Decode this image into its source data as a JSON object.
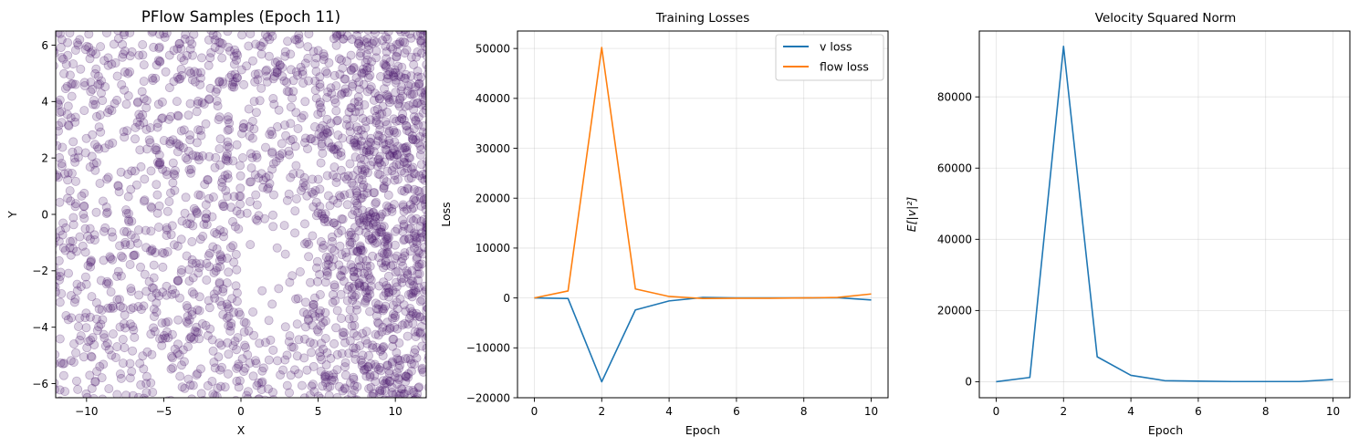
{
  "chart_data": [
    {
      "type": "scatter",
      "title": "PFlow Samples (Epoch 11)",
      "xlabel": "X",
      "ylabel": "Y",
      "xlim": [
        -12,
        12
      ],
      "ylim": [
        -6.5,
        6.5
      ],
      "xticks": [
        -10,
        -5,
        0,
        5,
        10
      ],
      "yticks": [
        -6,
        -4,
        -2,
        0,
        2,
        4,
        6
      ],
      "grid": false,
      "point_color": "#4b1a6e",
      "point_alpha": 0.2,
      "distribution": "approximately uniform over the full view, densest near the right edge (x > 7), with a sparser area near (2, -2)"
    },
    {
      "type": "line",
      "title": "Training Losses",
      "xlabel": "Epoch",
      "ylabel": "Loss",
      "x": [
        0,
        1,
        2,
        3,
        4,
        5,
        6,
        7,
        8,
        9,
        10
      ],
      "xlim": [
        -0.5,
        10.5
      ],
      "ylim": [
        -20000,
        53500
      ],
      "xticks": [
        0,
        2,
        4,
        6,
        8,
        10
      ],
      "yticks": [
        -20000,
        -10000,
        0,
        10000,
        20000,
        30000,
        40000,
        50000
      ],
      "grid": true,
      "legend": "top-right",
      "series": [
        {
          "name": "v loss",
          "color": "#1f77b4",
          "values": [
            0,
            -100,
            -16800,
            -2400,
            -600,
            100,
            0,
            0,
            0,
            50,
            -400
          ]
        },
        {
          "name": "flow loss",
          "color": "#ff7f0e",
          "values": [
            0,
            1400,
            50200,
            1800,
            300,
            -100,
            -50,
            -50,
            0,
            100,
            800
          ]
        }
      ]
    },
    {
      "type": "line",
      "title": "Velocity Squared Norm",
      "xlabel": "Epoch",
      "ylabel": "E[|v|²]",
      "x": [
        0,
        1,
        2,
        3,
        4,
        5,
        6,
        7,
        8,
        9,
        10
      ],
      "xlim": [
        -0.5,
        10.5
      ],
      "ylim": [
        -4500,
        98500
      ],
      "xticks": [
        0,
        2,
        4,
        6,
        8,
        10
      ],
      "yticks": [
        0,
        20000,
        40000,
        60000,
        80000
      ],
      "grid": true,
      "series": [
        {
          "color": "#1f77b4",
          "values": [
            0,
            1200,
            94200,
            7000,
            1800,
            300,
            150,
            50,
            50,
            50,
            600
          ]
        }
      ]
    }
  ]
}
